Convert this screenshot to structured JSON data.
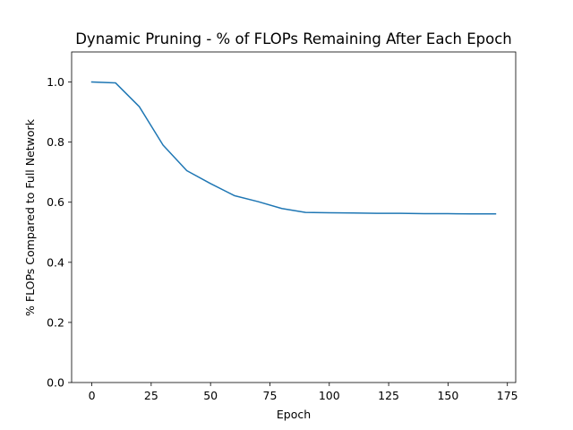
{
  "chart_data": {
    "type": "line",
    "title": "Dynamic Pruning - % of FLOPs Remaining After Each Epoch",
    "xlabel": "Epoch",
    "ylabel": "% FLOPs Compared to Full Network",
    "xlim": [
      -8.5,
      178.5
    ],
    "ylim": [
      0.0,
      1.1
    ],
    "xticks": [
      0,
      25,
      50,
      75,
      100,
      125,
      150,
      175
    ],
    "yticks": [
      0.0,
      0.2,
      0.4,
      0.6,
      0.8,
      1.0
    ],
    "xtick_labels": [
      "0",
      "25",
      "50",
      "75",
      "100",
      "125",
      "150",
      "175"
    ],
    "ytick_labels": [
      "0.0",
      "0.2",
      "0.4",
      "0.6",
      "0.8",
      "1.0"
    ],
    "grid": false,
    "series": [
      {
        "color": "#1f77b4",
        "x": [
          0,
          10,
          20,
          30,
          40,
          50,
          60,
          70,
          80,
          90,
          100,
          110,
          120,
          130,
          140,
          150,
          160,
          170
        ],
        "y": [
          1.0,
          0.997,
          0.918,
          0.79,
          0.705,
          0.662,
          0.622,
          0.602,
          0.579,
          0.566,
          0.565,
          0.564,
          0.563,
          0.563,
          0.562,
          0.562,
          0.561,
          0.561
        ]
      }
    ]
  }
}
